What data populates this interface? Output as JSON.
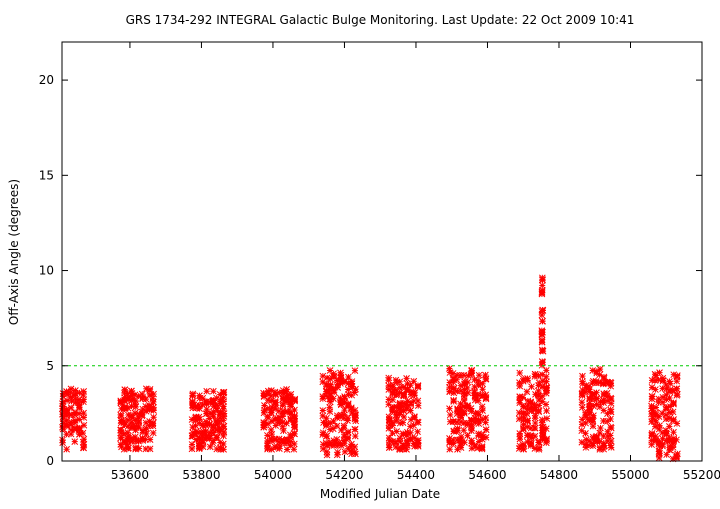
{
  "chart_data": {
    "type": "scatter",
    "title": "GRS 1734-292   INTEGRAL Galactic Bulge Monitoring.  Last Update: 22 Oct 2009 10:41",
    "xlabel": "Modified Julian Date",
    "ylabel": "Off-Axis Angle (degrees)",
    "xlim": [
      53410,
      55200
    ],
    "ylim": [
      0,
      22
    ],
    "x_ticks": [
      53600,
      53800,
      54000,
      54200,
      54400,
      54600,
      54800,
      55000,
      55200
    ],
    "y_ticks": [
      0,
      5,
      10,
      15,
      20
    ],
    "reference_line": {
      "y": 5,
      "color": "#00cc00",
      "style": "dashed"
    },
    "marker": {
      "shape": "asterisk",
      "color": "#ff0000"
    },
    "grid": false,
    "legend": "none",
    "observation_windows": [
      {
        "x_start": 53412,
        "x_end": 53470,
        "y_min": 0.6,
        "y_max": 3.8
      },
      {
        "x_start": 53575,
        "x_end": 53665,
        "y_min": 0.6,
        "y_max": 3.8
      },
      {
        "x_start": 53775,
        "x_end": 53862,
        "y_min": 0.6,
        "y_max": 3.8
      },
      {
        "x_start": 53975,
        "x_end": 54060,
        "y_min": 0.6,
        "y_max": 3.8
      },
      {
        "x_start": 54140,
        "x_end": 54230,
        "y_min": 0.3,
        "y_max": 4.8
      },
      {
        "x_start": 54325,
        "x_end": 54405,
        "y_min": 0.6,
        "y_max": 4.4
      },
      {
        "x_start": 54495,
        "x_end": 54595,
        "y_min": 0.6,
        "y_max": 4.9
      },
      {
        "x_start": 54690,
        "x_end": 54765,
        "y_min": 0.6,
        "y_max": 9.8
      },
      {
        "x_start": 54865,
        "x_end": 54945,
        "y_min": 0.6,
        "y_max": 4.9
      },
      {
        "x_start": 55060,
        "x_end": 55130,
        "y_min": 0.1,
        "y_max": 4.9
      }
    ]
  }
}
